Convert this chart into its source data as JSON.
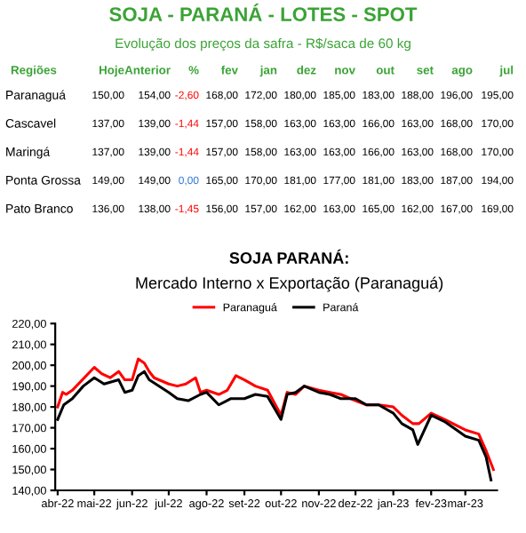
{
  "chart_data": [
    {
      "type": "other",
      "title": "SOJA - PARANÁ - LOTES - SPOT",
      "subtitle": "Evolução dos preços da safra - R$/saca de 60 kg",
      "ylabel": "Regiões",
      "categories": [
        "Hoje",
        "Anterior",
        "%",
        "fev",
        "jan",
        "dez",
        "nov",
        "out",
        "set",
        "ago",
        "jul"
      ],
      "y_categories": [
        "Paranaguá",
        "Cascavel",
        "Maringá",
        "Ponta Grossa",
        "Pato Branco"
      ],
      "colors": [
        [
          null,
          null,
          "#ff0000",
          null,
          null,
          null,
          null,
          null,
          null,
          null,
          null
        ],
        [
          null,
          null,
          "#ff0000",
          null,
          null,
          null,
          null,
          null,
          null,
          null,
          null
        ],
        [
          null,
          null,
          "#ff0000",
          null,
          null,
          null,
          null,
          null,
          null,
          null,
          null
        ],
        [
          null,
          null,
          "#2e75d6",
          null,
          null,
          null,
          null,
          null,
          null,
          null,
          null
        ],
        [
          null,
          null,
          "#ff0000",
          null,
          null,
          null,
          null,
          null,
          null,
          null,
          null
        ]
      ],
      "cell_labels": [
        [
          "150,00",
          "154,00",
          "-2,60",
          "168,00",
          "172,00",
          "180,00",
          "185,00",
          "183,00",
          "188,00",
          "196,00",
          "195,00"
        ],
        [
          "137,00",
          "139,00",
          "-1,44",
          "157,00",
          "158,00",
          "163,00",
          "163,00",
          "166,00",
          "163,00",
          "168,00",
          "170,00"
        ],
        [
          "137,00",
          "139,00",
          "-1,44",
          "157,00",
          "158,00",
          "163,00",
          "163,00",
          "166,00",
          "163,00",
          "168,00",
          "170,00"
        ],
        [
          "149,00",
          "149,00",
          "0,00",
          "165,00",
          "170,00",
          "181,00",
          "177,00",
          "181,00",
          "183,00",
          "187,00",
          "194,00"
        ],
        [
          "136,00",
          "138,00",
          "-1,45",
          "156,00",
          "157,00",
          "162,00",
          "163,00",
          "165,00",
          "162,00",
          "167,00",
          "169,00"
        ]
      ]
    },
    {
      "type": "line",
      "title": "SOJA PARANÁ:",
      "subtitle": "Mercado Interno x Exportação (Paranaguá)",
      "legend": "top",
      "grid": false,
      "marker": "none",
      "line_style": "solid",
      "xlim": [
        "2022-03-30",
        "2023-03-27"
      ],
      "xticks": [
        {
          "value": "2022-04-01",
          "label": "abr-22"
        },
        {
          "value": "2022-05-01",
          "label": "mai-22"
        },
        {
          "value": "2022-06-01",
          "label": "jun-22"
        },
        {
          "value": "2022-07-01",
          "label": "jul-22"
        },
        {
          "value": "2022-08-01",
          "label": "ago-22"
        },
        {
          "value": "2022-09-01",
          "label": "set-22"
        },
        {
          "value": "2022-10-01",
          "label": "out-22"
        },
        {
          "value": "2022-11-01",
          "label": "nov-22"
        },
        {
          "value": "2022-12-01",
          "label": "dez-22"
        },
        {
          "value": "2023-01-01",
          "label": "jan-23"
        },
        {
          "value": "2023-02-01",
          "label": "fev-23"
        },
        {
          "value": "2023-03-01",
          "label": "mar-23"
        }
      ],
      "ylim": [
        140,
        220
      ],
      "yticks": [
        {
          "value": 140,
          "label": "140,00"
        },
        {
          "value": 150,
          "label": "150,00"
        },
        {
          "value": 160,
          "label": "160,00"
        },
        {
          "value": 170,
          "label": "170,00"
        },
        {
          "value": 180,
          "label": "180,00"
        },
        {
          "value": 190,
          "label": "190,00"
        },
        {
          "value": 200,
          "label": "200,00"
        },
        {
          "value": 210,
          "label": "210,00"
        },
        {
          "value": 220,
          "label": "220,00"
        }
      ],
      "series": [
        {
          "name": "Paranaguá",
          "color": "#ff0000",
          "x": [
            "2022-04-01",
            "2022-04-05",
            "2022-04-08",
            "2022-04-13",
            "2022-05-01",
            "2022-05-07",
            "2022-05-14",
            "2022-05-21",
            "2022-05-26",
            "2022-06-01",
            "2022-06-06",
            "2022-06-11",
            "2022-06-15",
            "2022-06-19",
            "2022-07-01",
            "2022-07-08",
            "2022-07-15",
            "2022-07-23",
            "2022-07-27",
            "2022-08-01",
            "2022-08-11",
            "2022-08-18",
            "2022-08-25",
            "2022-09-01",
            "2022-09-10",
            "2022-09-20",
            "2022-10-01",
            "2022-10-06",
            "2022-10-13",
            "2022-10-20",
            "2022-11-01",
            "2022-11-10",
            "2022-11-19",
            "2022-12-01",
            "2022-12-10",
            "2022-12-20",
            "2023-01-01",
            "2023-01-08",
            "2023-01-17",
            "2023-01-22",
            "2023-02-01",
            "2023-02-12",
            "2023-03-01",
            "2023-03-12",
            "2023-03-18",
            "2023-03-24"
          ],
          "values": [
            180,
            187,
            186,
            188,
            199,
            196,
            194,
            197,
            193,
            193,
            203,
            201,
            197,
            194,
            191,
            190,
            191,
            194,
            187,
            188,
            186,
            188,
            195,
            193,
            190,
            188,
            176,
            187,
            186,
            190,
            188,
            187,
            186,
            183,
            181,
            181,
            180,
            176,
            172,
            172,
            177,
            174,
            169,
            167,
            159,
            150
          ]
        },
        {
          "name": "Paraná",
          "color": "#000000",
          "x": [
            "2022-04-01",
            "2022-04-06",
            "2022-04-13",
            "2022-04-22",
            "2022-05-01",
            "2022-05-09",
            "2022-05-21",
            "2022-05-26",
            "2022-06-01",
            "2022-06-06",
            "2022-06-11",
            "2022-06-15",
            "2022-07-01",
            "2022-07-08",
            "2022-07-17",
            "2022-07-27",
            "2022-08-01",
            "2022-08-11",
            "2022-08-21",
            "2022-09-01",
            "2022-09-10",
            "2022-09-20",
            "2022-10-01",
            "2022-10-06",
            "2022-10-13",
            "2022-10-20",
            "2022-11-01",
            "2022-11-10",
            "2022-11-19",
            "2022-12-01",
            "2022-12-10",
            "2022-12-20",
            "2023-01-01",
            "2023-01-08",
            "2023-01-17",
            "2023-01-21",
            "2023-02-01",
            "2023-02-12",
            "2023-03-01",
            "2023-03-12",
            "2023-03-18",
            "2023-03-22"
          ],
          "values": [
            174,
            181,
            184,
            190,
            194,
            191,
            193,
            187,
            188,
            195,
            197,
            193,
            187,
            184,
            183,
            186,
            187,
            181,
            184,
            184,
            186,
            185,
            174,
            186,
            187,
            190,
            187,
            186,
            184,
            184,
            181,
            181,
            177,
            172,
            169,
            162,
            176,
            173,
            166,
            164,
            156,
            145
          ]
        }
      ]
    }
  ]
}
